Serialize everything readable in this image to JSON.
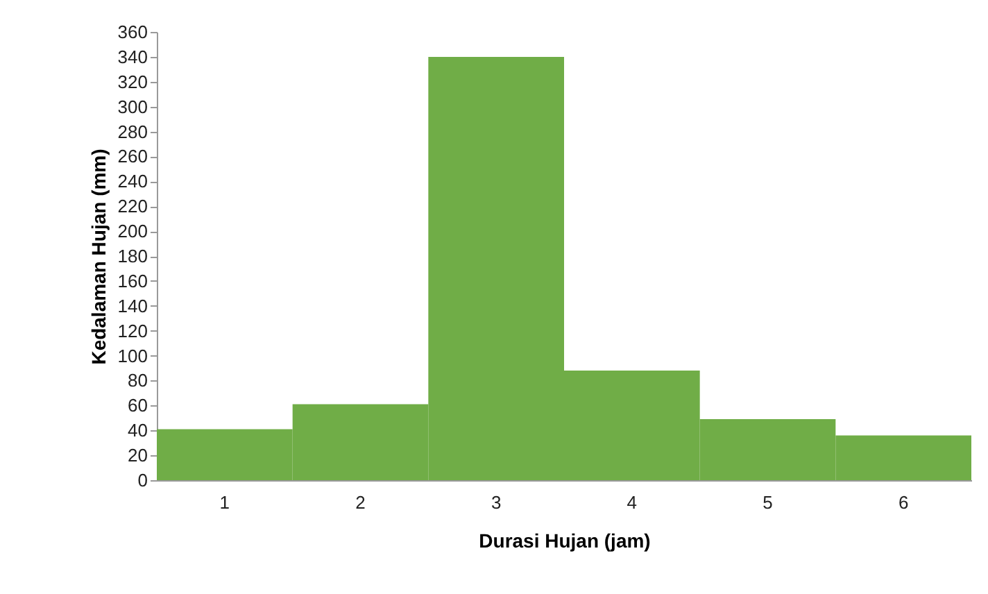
{
  "chart_data": {
    "type": "bar",
    "xlabel": "Durasi Hujan (jam)",
    "ylabel": "Kedalaman Hujan (mm)",
    "categories": [
      "1",
      "2",
      "3",
      "4",
      "5",
      "6"
    ],
    "values": [
      41,
      61,
      340,
      88,
      49,
      36
    ],
    "color": "#70ad47",
    "ylim": [
      0,
      360
    ],
    "yticks": [
      0,
      20,
      40,
      60,
      80,
      100,
      120,
      140,
      160,
      180,
      200,
      220,
      240,
      260,
      280,
      300,
      320,
      340,
      360
    ],
    "grid": false
  }
}
